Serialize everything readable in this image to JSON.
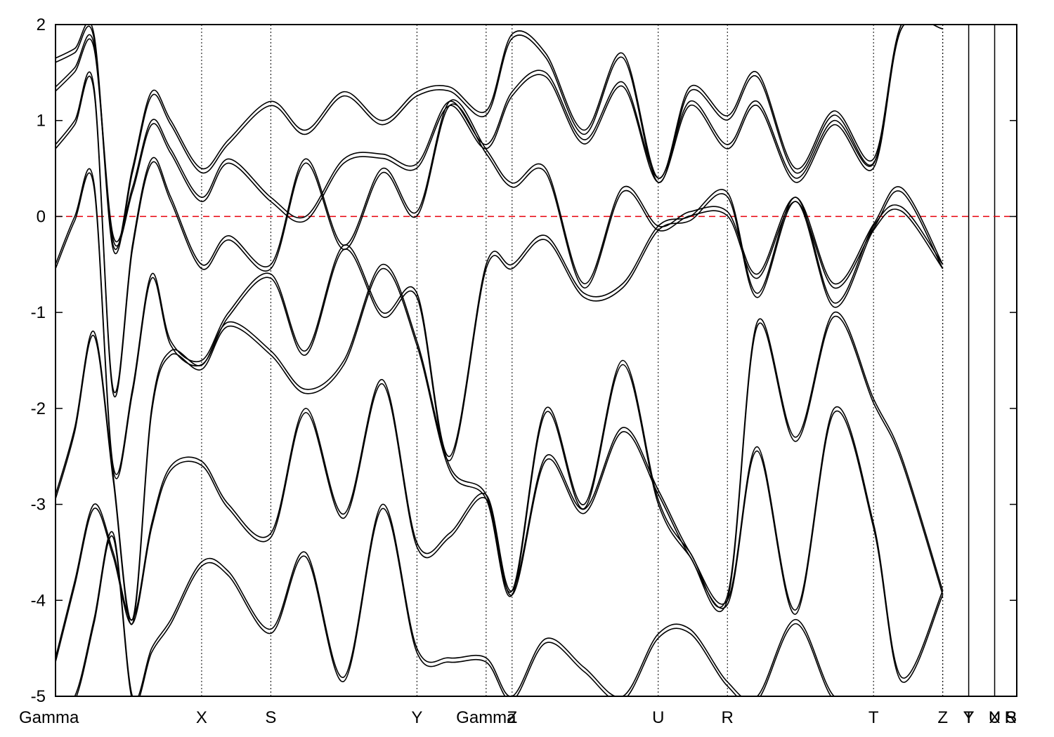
{
  "chart_data": {
    "type": "line",
    "title": "",
    "xlabel": "",
    "ylabel": "",
    "ylim": [
      -5,
      2
    ],
    "yticks": [
      -5,
      -4,
      -3,
      -2,
      -1,
      0,
      1,
      2
    ],
    "grid": false,
    "legend": "none",
    "colors": {
      "bands": "#000000",
      "fermi_level": "#e8000b"
    },
    "fermi_level": 0,
    "kpoints": [
      {
        "label": "Gamma",
        "x": 0.0
      },
      {
        "label": "X",
        "x": 0.152
      },
      {
        "label": "S",
        "x": 0.224
      },
      {
        "label": "Y",
        "x": 0.376
      },
      {
        "label": "Gamma",
        "x": 0.448
      },
      {
        "label": "Z",
        "x": 0.475
      },
      {
        "label": "U",
        "x": 0.627
      },
      {
        "label": "R",
        "x": 0.699
      },
      {
        "label": "T",
        "x": 0.851
      },
      {
        "label": "Z",
        "x": 0.923
      },
      {
        "label": "Y",
        "x": 0.95
      },
      {
        "label": "T",
        "x": 0.95
      },
      {
        "label": "U",
        "x": 0.977
      },
      {
        "label": "X",
        "x": 0.977
      },
      {
        "label": "S",
        "x": 1.0
      },
      {
        "label": "R",
        "x": 1.0
      }
    ],
    "segment_breaks": [
      0.923,
      0.95,
      0.977
    ],
    "series": [
      {
        "x": [
          0.0,
          0.02,
          0.04,
          0.06,
          0.08,
          0.1,
          0.12,
          0.152,
          0.18,
          0.224,
          0.26,
          0.3,
          0.34,
          0.376,
          0.41,
          0.448,
          0.475,
          0.51,
          0.55,
          0.59,
          0.627,
          0.66,
          0.699,
          0.73,
          0.77,
          0.81,
          0.851,
          0.88,
          0.923
        ],
        "y": [
          1.65,
          1.75,
          1.9,
          -0.3,
          0.5,
          1.3,
          1.0,
          0.5,
          0.8,
          1.2,
          0.9,
          1.3,
          1.0,
          1.3,
          1.35,
          1.1,
          1.9,
          1.7,
          0.9,
          1.7,
          0.4,
          1.35,
          1.05,
          1.5,
          0.5,
          1.1,
          0.6,
          2.0,
          2.0
        ]
      },
      {
        "x": [
          0.0,
          0.02,
          0.04,
          0.06,
          0.08,
          0.1,
          0.12,
          0.152,
          0.18,
          0.224,
          0.26,
          0.3,
          0.34,
          0.376,
          0.41,
          0.448,
          0.475,
          0.51,
          0.55,
          0.59,
          0.627,
          0.66,
          0.699,
          0.73,
          0.77,
          0.81,
          0.851,
          0.88,
          0.923
        ],
        "y": [
          1.35,
          1.55,
          1.8,
          -0.2,
          0.3,
          1.0,
          0.7,
          0.2,
          0.6,
          0.2,
          0.0,
          0.6,
          0.65,
          0.55,
          1.2,
          0.75,
          1.3,
          1.5,
          0.8,
          1.4,
          0.4,
          1.2,
          0.75,
          1.2,
          0.4,
          1.0,
          0.55,
          2.0,
          2.0
        ]
      },
      {
        "x": [
          0.0,
          0.02,
          0.04,
          0.06,
          0.08,
          0.1,
          0.12,
          0.152,
          0.18,
          0.224,
          0.26,
          0.3,
          0.34,
          0.376,
          0.41,
          0.448,
          0.475,
          0.51,
          0.55,
          0.59,
          0.627,
          0.66,
          0.699,
          0.73,
          0.77,
          0.81,
          0.851,
          0.88,
          0.923
        ],
        "y": [
          0.75,
          1.0,
          1.35,
          -1.8,
          -0.3,
          0.6,
          0.2,
          -0.5,
          -0.2,
          -0.5,
          0.6,
          -0.3,
          0.5,
          0.05,
          1.2,
          0.7,
          0.35,
          0.5,
          -0.7,
          0.3,
          -0.1,
          0.05,
          0.05,
          -0.6,
          0.2,
          -0.7,
          -0.08,
          0.3,
          -0.5
        ]
      },
      {
        "x": [
          0.0,
          0.02,
          0.04,
          0.06,
          0.08,
          0.1,
          0.12,
          0.152,
          0.18,
          0.224,
          0.26,
          0.3,
          0.34,
          0.376,
          0.41,
          0.448,
          0.475,
          0.51,
          0.55,
          0.59,
          0.627,
          0.66,
          0.699,
          0.73,
          0.77,
          0.81,
          0.851,
          0.88,
          0.923
        ],
        "y": [
          -0.5,
          0.0,
          0.35,
          -2.6,
          -1.8,
          -0.6,
          -1.3,
          -1.5,
          -1.0,
          -0.6,
          -1.4,
          -0.3,
          -1.0,
          -0.8,
          -2.5,
          -0.5,
          -0.5,
          -0.2,
          -0.8,
          -0.7,
          -0.1,
          0.0,
          0.25,
          -0.8,
          0.2,
          -0.9,
          -0.1,
          0.1,
          -0.5
        ]
      },
      {
        "x": [
          0.0,
          0.02,
          0.04,
          0.06,
          0.08,
          0.1,
          0.12,
          0.152,
          0.18,
          0.224,
          0.26,
          0.3,
          0.34,
          0.376,
          0.41,
          0.448,
          0.475,
          0.51,
          0.55,
          0.59,
          0.627,
          0.66,
          0.699,
          0.73,
          0.77,
          0.81,
          0.851,
          0.88,
          0.923
        ],
        "y": [
          -2.9,
          -2.2,
          -1.2,
          -2.7,
          -4.2,
          -2.0,
          -1.4,
          -1.55,
          -1.1,
          -1.4,
          -1.8,
          -1.5,
          -0.5,
          -1.3,
          -2.6,
          -2.9,
          -3.9,
          -2.0,
          -3.0,
          -1.5,
          -2.95,
          -3.5,
          -3.95,
          -1.1,
          -2.3,
          -1.0,
          -1.9,
          -2.5,
          -3.9
        ]
      },
      {
        "x": [
          0.0,
          0.02,
          0.04,
          0.06,
          0.08,
          0.1,
          0.12,
          0.152,
          0.18,
          0.224,
          0.26,
          0.3,
          0.34,
          0.376,
          0.41,
          0.448,
          0.475,
          0.51,
          0.55,
          0.59,
          0.627,
          0.66,
          0.699,
          0.73,
          0.77,
          0.81,
          0.851,
          0.88,
          0.923
        ],
        "y": [
          -4.6,
          -3.8,
          -3.0,
          -3.5,
          -4.2,
          -3.2,
          -2.6,
          -2.55,
          -3.0,
          -3.3,
          -2.0,
          -3.1,
          -1.7,
          -3.4,
          -3.3,
          -2.9,
          -3.9,
          -2.5,
          -3.05,
          -2.2,
          -2.85,
          -3.5,
          -4.0,
          -2.4,
          -4.1,
          -2.0,
          -3.2,
          -4.8,
          -3.9
        ]
      },
      {
        "x": [
          0.0,
          0.02,
          0.04,
          0.06,
          0.08,
          0.1,
          0.12,
          0.152,
          0.18,
          0.224,
          0.26,
          0.3,
          0.34,
          0.376,
          0.41,
          0.448,
          0.475,
          0.51,
          0.55,
          0.59,
          0.627,
          0.66,
          0.699,
          0.73,
          0.77,
          0.81,
          0.851,
          0.88,
          0.923
        ],
        "y": [
          -5.0,
          -5.0,
          -4.2,
          -3.3,
          -5.0,
          -4.5,
          -4.2,
          -3.6,
          -3.7,
          -4.3,
          -3.5,
          -4.8,
          -3.0,
          -4.5,
          -4.6,
          -4.6,
          -5.0,
          -4.4,
          -4.7,
          -5.0,
          -4.35,
          -4.3,
          -4.85,
          -5.0,
          -4.2,
          -5.0,
          -5.0,
          -5.0,
          -5.0
        ]
      }
    ]
  }
}
